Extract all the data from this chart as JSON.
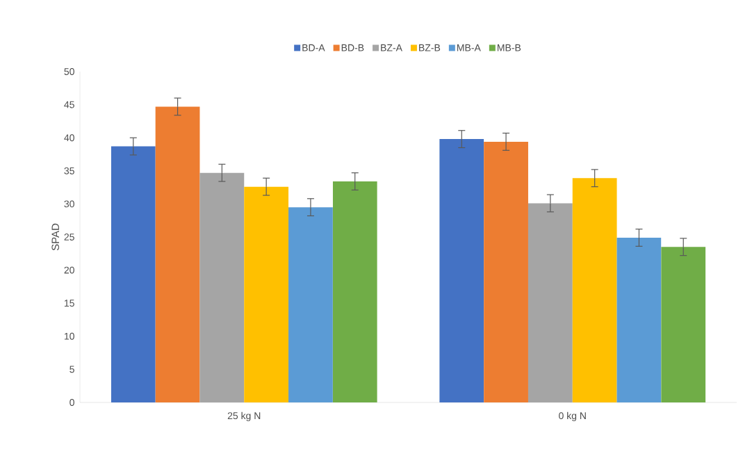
{
  "chart_data": {
    "type": "bar",
    "ylabel": "SPAD",
    "categories": [
      "25 kg N",
      "0 kg N"
    ],
    "series": [
      {
        "name": "BD-A",
        "color": "#4472c4",
        "values": [
          38.7,
          39.8
        ],
        "errors": [
          1.3,
          1.3
        ]
      },
      {
        "name": "BD-B",
        "color": "#ed7d31",
        "values": [
          44.7,
          39.4
        ],
        "errors": [
          1.3,
          1.3
        ]
      },
      {
        "name": "BZ-A",
        "color": "#a5a5a5",
        "values": [
          34.7,
          30.1
        ],
        "errors": [
          1.3,
          1.3
        ]
      },
      {
        "name": "BZ-B",
        "color": "#ffc000",
        "values": [
          32.6,
          33.9
        ],
        "errors": [
          1.3,
          1.3
        ]
      },
      {
        "name": "MB-A",
        "color": "#5b9bd5",
        "values": [
          29.5,
          24.9
        ],
        "errors": [
          1.3,
          1.3
        ]
      },
      {
        "name": "MB-B",
        "color": "#70ad47",
        "values": [
          33.4,
          23.5
        ],
        "errors": [
          1.3,
          1.3
        ]
      }
    ],
    "ylim": [
      0,
      50
    ],
    "yticks": [
      0,
      5,
      10,
      15,
      20,
      25,
      30,
      35,
      40,
      45,
      50
    ],
    "grid": false,
    "legend": "top"
  }
}
